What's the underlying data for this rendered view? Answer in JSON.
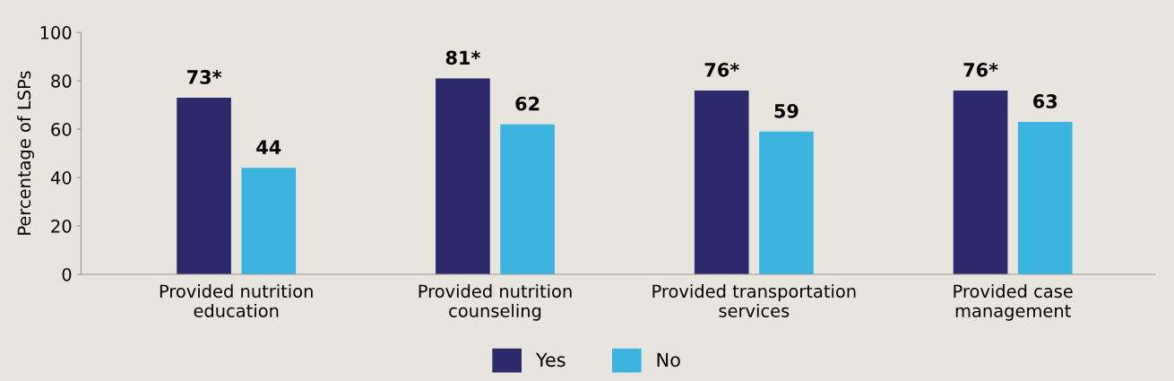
{
  "chart_data": {
    "type": "bar",
    "ylabel": "Percentage of LSPs",
    "categories": [
      "Provided nutrition\neducation",
      "Provided nutrition\ncounseling",
      "Provided transportation\nservices",
      "Provided case\nmanagement"
    ],
    "series": [
      {
        "name": "Yes",
        "color": "#2d2a6b",
        "values": [
          73,
          81,
          76,
          76
        ],
        "value_labels": [
          "73*",
          "81*",
          "76*",
          "76*"
        ]
      },
      {
        "name": "No",
        "color": "#3bb4e0",
        "values": [
          44,
          62,
          59,
          63
        ],
        "value_labels": [
          "44",
          "62",
          "59",
          "63"
        ]
      }
    ],
    "ylim": [
      0,
      100
    ],
    "yticks": [
      0,
      20,
      40,
      60,
      80,
      100
    ],
    "grid": false,
    "legend": "bottom"
  }
}
